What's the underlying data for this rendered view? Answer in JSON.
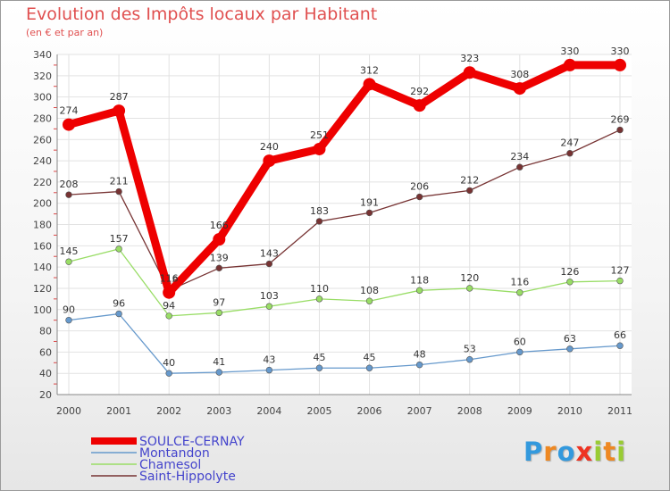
{
  "chart_data": {
    "type": "line",
    "title": "Evolution des Impôts locaux par Habitant",
    "subtitle": "(en € et par an)",
    "x": [
      "2000",
      "2001",
      "2002",
      "2003",
      "2004",
      "2005",
      "2006",
      "2007",
      "2008",
      "2009",
      "2010",
      "2011"
    ],
    "ylim": [
      20,
      340
    ],
    "yticks": [
      20,
      40,
      60,
      80,
      100,
      120,
      140,
      160,
      180,
      200,
      220,
      240,
      260,
      280,
      300,
      320,
      340
    ],
    "grid": true,
    "legend_position": "bottom-left",
    "series": [
      {
        "name": "SOULCE-CERNAY",
        "values": [
          274,
          287,
          116,
          166,
          240,
          251,
          312,
          292,
          323,
          308,
          330,
          330
        ],
        "color": "#ee0000",
        "emphasis": true,
        "labels": [
          "274",
          "287",
          "116",
          "166",
          "240",
          "251",
          "312",
          "292",
          "323",
          "308",
          "330",
          "330"
        ]
      },
      {
        "name": "Montandon",
        "values": [
          90,
          96,
          40,
          41,
          43,
          45,
          45,
          48,
          53,
          60,
          63,
          66
        ],
        "color": "#6699cc",
        "labels": [
          "90",
          "96",
          "40",
          "41",
          "43",
          "45",
          "45",
          "48",
          "53",
          "60",
          "63",
          "66"
        ]
      },
      {
        "name": "Chamesol",
        "values": [
          145,
          157,
          94,
          97,
          103,
          110,
          108,
          118,
          120,
          116,
          126,
          127
        ],
        "color": "#99dd66",
        "labels": [
          "145",
          "157",
          "94",
          "97",
          "103",
          "110",
          "108",
          "118",
          "120",
          "116",
          "126",
          "127"
        ]
      },
      {
        "name": "Saint-Hippolyte",
        "values": [
          208,
          211,
          118,
          139,
          143,
          183,
          191,
          206,
          212,
          234,
          247,
          269
        ],
        "color": "#773333",
        "labels": [
          "208",
          "211",
          "118",
          "139",
          "143",
          "183",
          "191",
          "206",
          "212",
          "234",
          "247",
          "269"
        ]
      }
    ]
  },
  "legend_text_color": "#4444cc",
  "logo": {
    "letters": [
      "P",
      "r",
      "o",
      "x",
      "i",
      "t",
      "i"
    ],
    "colors": [
      "#3399dd",
      "#ee8822",
      "#3399dd",
      "#ee3322",
      "#99cc33",
      "#ee8822",
      "#99cc33"
    ]
  }
}
